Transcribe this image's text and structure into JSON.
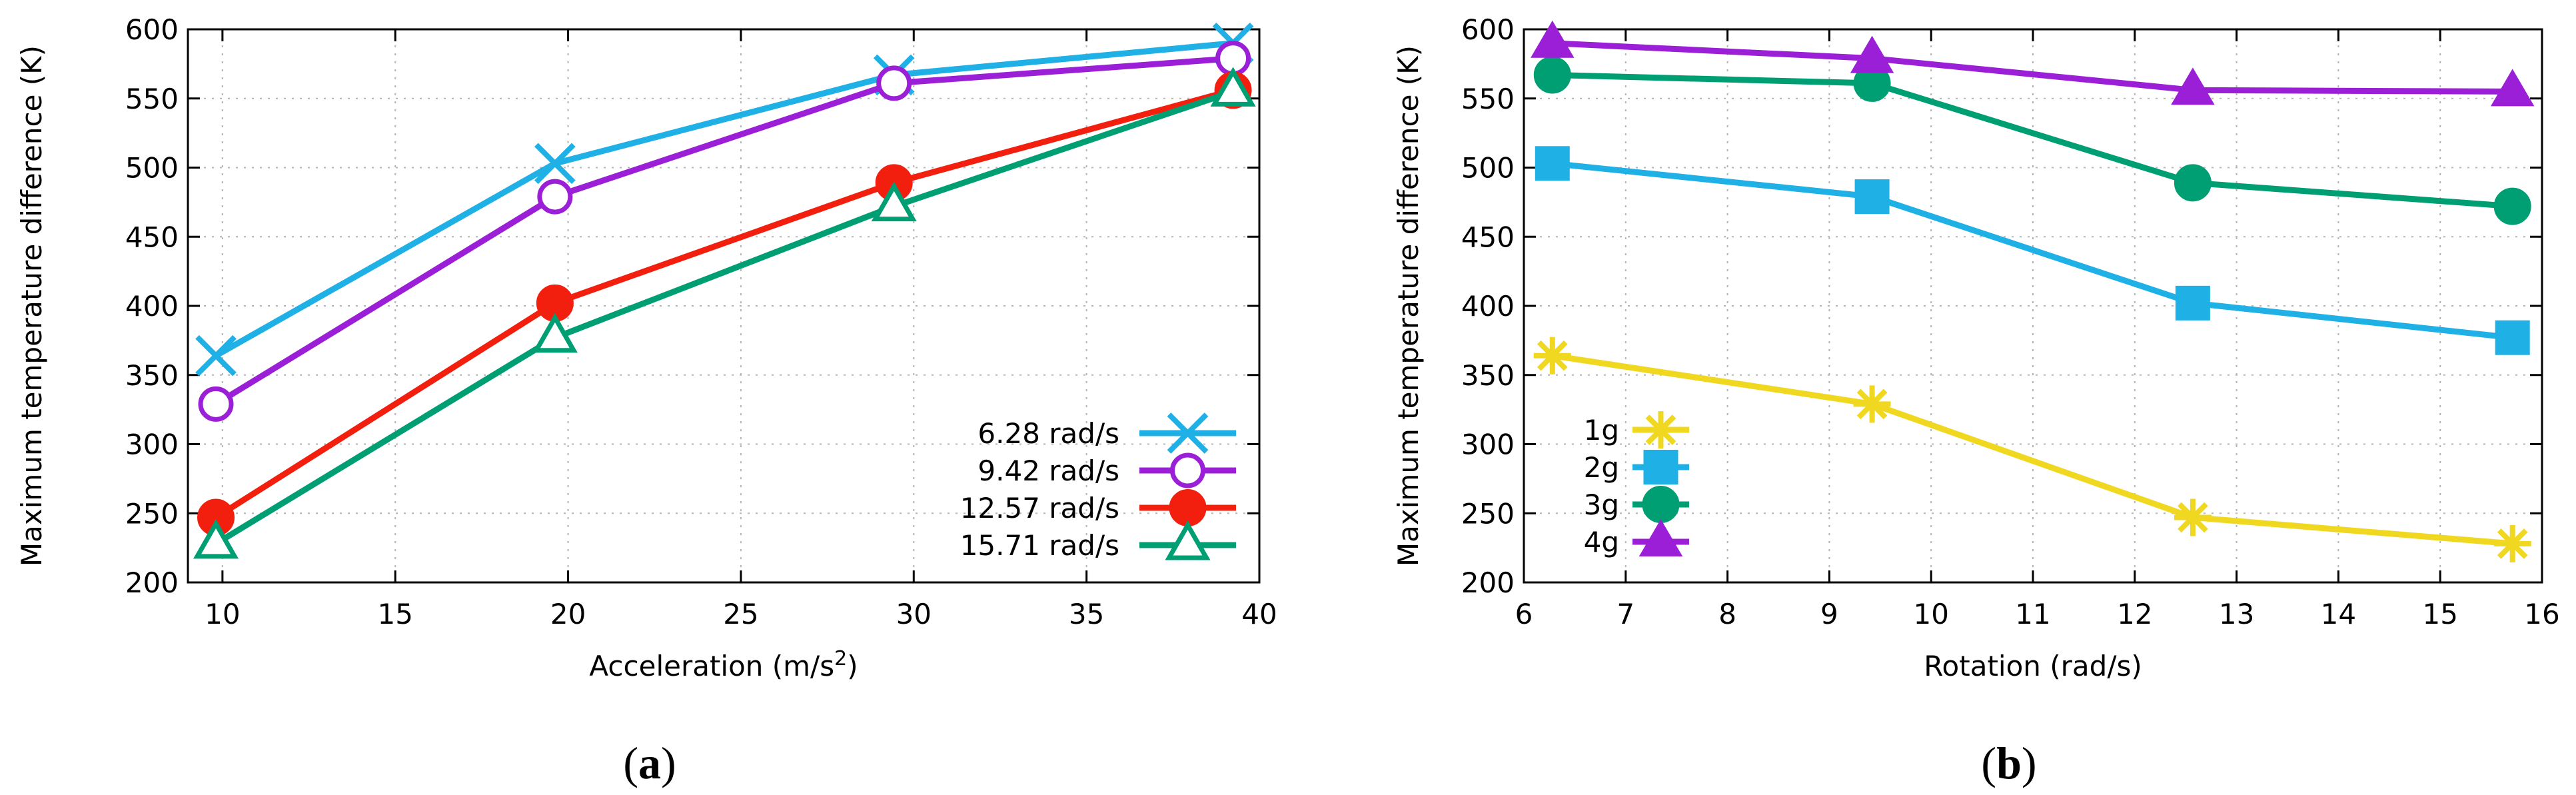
{
  "chart_data": [
    {
      "type": "line",
      "panel": "a",
      "caption": "(a)",
      "caption_letter": "a",
      "xlabel": "Acceleration (m/s",
      "xlabel_superscript": "2",
      "xlabel_suffix": ")",
      "ylabel": "Maximum temperature difference (K)",
      "xlim": [
        9,
        40
      ],
      "ylim": [
        200,
        600
      ],
      "xticks": [
        10,
        15,
        20,
        25,
        30,
        35,
        40
      ],
      "yticks": [
        200,
        250,
        300,
        350,
        400,
        450,
        500,
        550,
        600
      ],
      "grid": true,
      "legend_position": "bottom-right",
      "series": [
        {
          "name": "6.28 rad/s",
          "color": "#1fb0e6",
          "marker": "cross",
          "x": [
            9.81,
            19.62,
            29.43,
            39.24
          ],
          "y": [
            364,
            503,
            567,
            590
          ]
        },
        {
          "name": "9.42 rad/s",
          "color": "#9b1fd6",
          "marker": "circle-open",
          "x": [
            9.81,
            19.62,
            29.43,
            39.24
          ],
          "y": [
            329,
            479,
            561,
            579
          ]
        },
        {
          "name": "12.57 rad/s",
          "color": "#f21f0f",
          "marker": "circle-filled",
          "x": [
            9.81,
            19.62,
            29.43,
            39.24
          ],
          "y": [
            247,
            402,
            489,
            556
          ]
        },
        {
          "name": "15.71 rad/s",
          "color": "#009e73",
          "marker": "triangle-open",
          "x": [
            9.81,
            19.62,
            29.43,
            39.24
          ],
          "y": [
            228,
            377,
            472,
            555
          ]
        }
      ]
    },
    {
      "type": "line",
      "panel": "b",
      "caption": "(b)",
      "caption_letter": "b",
      "xlabel": "Rotation (rad/s)",
      "ylabel": "Maximum temperature difference (K)",
      "xlim": [
        6,
        16
      ],
      "ylim": [
        200,
        600
      ],
      "xticks": [
        6,
        7,
        8,
        9,
        10,
        11,
        12,
        13,
        14,
        15,
        16
      ],
      "yticks": [
        200,
        250,
        300,
        350,
        400,
        450,
        500,
        550,
        600
      ],
      "grid": true,
      "legend_position": "bottom-left",
      "series": [
        {
          "name": "1g",
          "color": "#f0d820",
          "marker": "star",
          "x": [
            6.28,
            9.42,
            12.57,
            15.71
          ],
          "y": [
            364,
            329,
            247,
            228
          ]
        },
        {
          "name": "2g",
          "color": "#1fb0e6",
          "marker": "square-filled",
          "x": [
            6.28,
            9.42,
            12.57,
            15.71
          ],
          "y": [
            503,
            479,
            402,
            377
          ]
        },
        {
          "name": "3g",
          "color": "#009e73",
          "marker": "circle-filled",
          "x": [
            6.28,
            9.42,
            12.57,
            15.71
          ],
          "y": [
            567,
            561,
            489,
            472
          ]
        },
        {
          "name": "4g",
          "color": "#9b1fd6",
          "marker": "triangle-filled",
          "x": [
            6.28,
            9.42,
            12.57,
            15.71
          ],
          "y": [
            590,
            579,
            556,
            555
          ]
        }
      ]
    }
  ]
}
